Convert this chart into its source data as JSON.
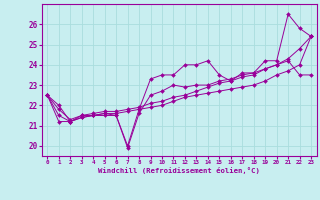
{
  "xlabel": "Windchill (Refroidissement éolien,°C)",
  "bg_color": "#c8eef0",
  "line_color": "#990099",
  "grid_color": "#aadddd",
  "xlim": [
    -0.5,
    23.5
  ],
  "ylim": [
    19.5,
    27.0
  ],
  "xticks": [
    0,
    1,
    2,
    3,
    4,
    5,
    6,
    7,
    8,
    9,
    10,
    11,
    12,
    13,
    14,
    15,
    16,
    17,
    18,
    19,
    20,
    21,
    22,
    23
  ],
  "yticks": [
    20,
    21,
    22,
    23,
    24,
    25,
    26
  ],
  "series": [
    [
      22.5,
      22.0,
      21.2,
      21.5,
      21.5,
      21.5,
      21.5,
      20.0,
      21.8,
      23.3,
      23.5,
      23.5,
      24.0,
      24.0,
      24.2,
      23.5,
      23.2,
      23.6,
      23.6,
      24.2,
      24.2,
      26.5,
      25.8,
      25.4
    ],
    [
      22.5,
      21.5,
      21.2,
      21.4,
      21.5,
      21.6,
      21.5,
      19.9,
      21.6,
      22.5,
      22.7,
      23.0,
      22.9,
      23.0,
      23.0,
      23.2,
      23.3,
      23.5,
      23.6,
      23.8,
      24.0,
      24.2,
      23.5,
      23.5
    ],
    [
      22.5,
      21.2,
      21.2,
      21.4,
      21.5,
      21.6,
      21.6,
      21.7,
      21.8,
      21.9,
      22.0,
      22.2,
      22.4,
      22.5,
      22.6,
      22.7,
      22.8,
      22.9,
      23.0,
      23.2,
      23.5,
      23.7,
      24.0,
      25.4
    ],
    [
      22.5,
      21.8,
      21.3,
      21.5,
      21.6,
      21.7,
      21.7,
      21.8,
      21.9,
      22.1,
      22.2,
      22.4,
      22.5,
      22.7,
      22.9,
      23.1,
      23.2,
      23.4,
      23.5,
      23.8,
      24.0,
      24.3,
      24.8,
      25.4
    ]
  ]
}
